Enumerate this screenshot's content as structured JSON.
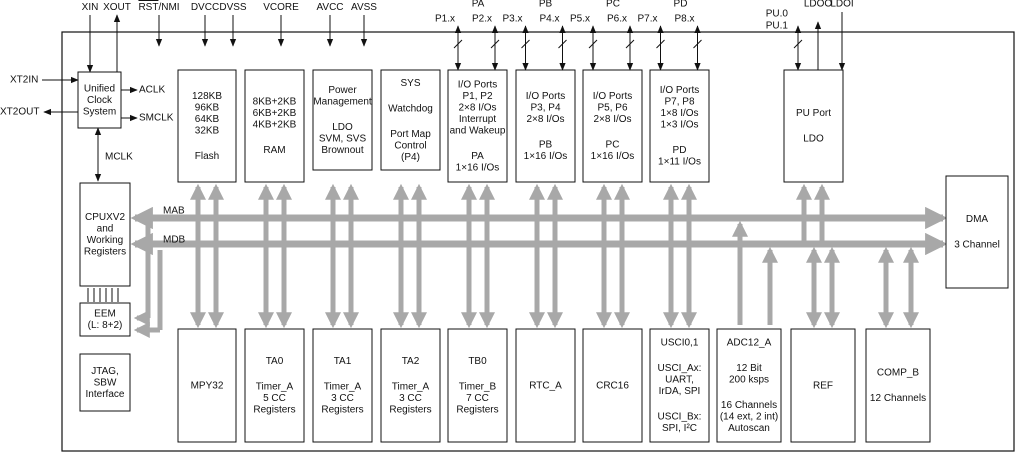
{
  "top_pins": [
    {
      "label": "XIN"
    },
    {
      "label": "XOUT"
    },
    {
      "overline": "RST",
      "label": "/NMI"
    },
    {
      "label": "DVCC"
    },
    {
      "label": "DVSS"
    },
    {
      "label": "VCORE"
    },
    {
      "label": "AVCC"
    },
    {
      "label": "AVSS"
    }
  ],
  "left_pins": [
    "XT2IN",
    "XT2OUT"
  ],
  "ports": [
    {
      "name": "PA",
      "pins": [
        "P1.x",
        "P2.x"
      ]
    },
    {
      "name": "PB",
      "pins": [
        "P3.x",
        "P4.x"
      ]
    },
    {
      "name": "PC",
      "pins": [
        "P5.x",
        "P6.x"
      ]
    },
    {
      "name": "PD",
      "pins": [
        "P7.x",
        "P8.x"
      ]
    }
  ],
  "pu_pins": [
    "PU.0",
    "PU.1"
  ],
  "ldo_pins": [
    "LDOO",
    "LDOI"
  ],
  "clocks": [
    "ACLK",
    "SMCLK",
    "MCLK"
  ],
  "buses": [
    "MAB",
    "MDB"
  ],
  "blocks": [
    {
      "groups": [
        [
          "Unified",
          "Clock",
          "System"
        ]
      ]
    },
    {
      "groups": [
        [
          "128KB",
          "96KB",
          "64KB",
          "32KB"
        ],
        [
          "Flash"
        ]
      ]
    },
    {
      "groups": [
        [
          "8KB+2KB",
          "6KB+2KB",
          "4KB+2KB"
        ],
        [
          "RAM"
        ]
      ]
    },
    {
      "groups": [
        [
          "Power",
          "Management"
        ],
        [
          "LDO",
          "SVM, SVS",
          "Brownout"
        ]
      ]
    },
    {
      "groups": [
        [
          "SYS"
        ],
        [
          "Watchdog"
        ],
        [
          "Port Map",
          "Control",
          "(P4)"
        ]
      ]
    },
    {
      "groups": [
        [
          "I/O Ports",
          "P1, P2",
          "2×8 I/Os",
          "Interrupt",
          "and Wakeup"
        ],
        [
          "PA",
          "1×16 I/Os"
        ]
      ]
    },
    {
      "groups": [
        [
          "I/O Ports",
          "P3, P4",
          "2×8 I/Os"
        ],
        [
          "PB",
          "1×16 I/Os"
        ]
      ]
    },
    {
      "groups": [
        [
          "I/O Ports",
          "P5, P6",
          "2×8 I/Os"
        ],
        [
          "PC",
          "1×16 I/Os"
        ]
      ]
    },
    {
      "groups": [
        [
          "I/O Ports",
          "P7, P8",
          "1×8 I/Os",
          "1×3 I/Os"
        ],
        [
          "PD",
          "1×11 I/Os"
        ]
      ]
    },
    {
      "groups": [
        [
          "PU Port"
        ],
        [
          "LDO"
        ]
      ]
    },
    {
      "groups": [
        [
          "DMA"
        ],
        [
          "3 Channel"
        ]
      ]
    },
    {
      "groups": [
        [
          "CPUXV2",
          "and",
          "Working",
          "Registers"
        ]
      ]
    },
    {
      "groups": [
        [
          "EEM",
          "(L: 8+2)"
        ]
      ]
    },
    {
      "groups": [
        [
          "JTAG,",
          "SBW",
          "Interface"
        ]
      ]
    },
    {
      "groups": [
        [
          "MPY32"
        ]
      ]
    },
    {
      "groups": [
        [
          "TA0"
        ],
        [
          "Timer_A",
          "5 CC",
          "Registers"
        ]
      ]
    },
    {
      "groups": [
        [
          "TA1"
        ],
        [
          "Timer_A",
          "3 CC",
          "Registers"
        ]
      ]
    },
    {
      "groups": [
        [
          "TA2"
        ],
        [
          "Timer_A",
          "3 CC",
          "Registers"
        ]
      ]
    },
    {
      "groups": [
        [
          "TB0"
        ],
        [
          "Timer_B",
          "7 CC",
          "Registers"
        ]
      ]
    },
    {
      "groups": [
        [
          "RTC_A"
        ]
      ]
    },
    {
      "groups": [
        [
          "CRC16"
        ]
      ]
    },
    {
      "groups": [
        [
          "USCI0,1"
        ],
        [
          "USCI_Ax:",
          "UART,",
          "IrDA, SPI"
        ],
        [
          "USCI_Bx:",
          "SPI, I²C"
        ]
      ]
    },
    {
      "groups": [
        [
          "ADC12_A"
        ],
        [
          "12 Bit",
          "200 ksps"
        ],
        [
          "16 Channels",
          "(14 ext, 2 int)",
          "Autoscan"
        ]
      ]
    },
    {
      "groups": [
        [
          "REF"
        ]
      ]
    },
    {
      "groups": [
        [
          "COMP_B"
        ],
        [
          "12 Channels"
        ]
      ]
    }
  ]
}
